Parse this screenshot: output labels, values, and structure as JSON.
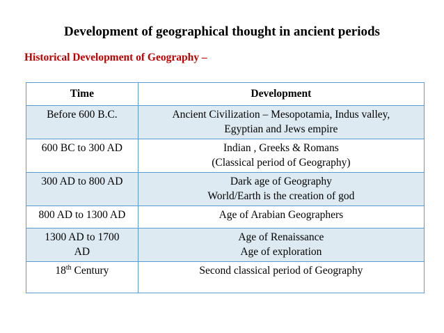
{
  "slide": {
    "title": "Development of geographical thought in ancient periods",
    "subtitle": "Historical Development of Geography –"
  },
  "table": {
    "headers": [
      "Time",
      "Development"
    ],
    "rows": [
      {
        "time_lines": [
          "Before 600 B.C."
        ],
        "dev_lines": [
          "Ancient Civilization – Mesopotamia, Indus valley,",
          "Egyptian and Jews empire"
        ]
      },
      {
        "time_lines": [
          "600 BC to 300 AD"
        ],
        "dev_lines": [
          "Indian , Greeks & Romans",
          "(Classical period of Geography)"
        ]
      },
      {
        "time_lines": [
          "300 AD to 800 AD"
        ],
        "dev_lines": [
          "Dark age of Geography",
          "World/Earth is the creation of god"
        ]
      },
      {
        "time_lines": [
          "800 AD to 1300 AD"
        ],
        "dev_lines": [
          "Age of Arabian Geographers"
        ]
      },
      {
        "time_lines": [
          "1300 AD to 1700",
          "AD"
        ],
        "dev_lines": [
          "Age of Renaissance",
          "Age of exploration"
        ]
      },
      {
        "time_num": "18",
        "time_sup": "th",
        "time_rest": " Century",
        "dev_lines": [
          "Second classical period of Geography"
        ]
      }
    ]
  }
}
